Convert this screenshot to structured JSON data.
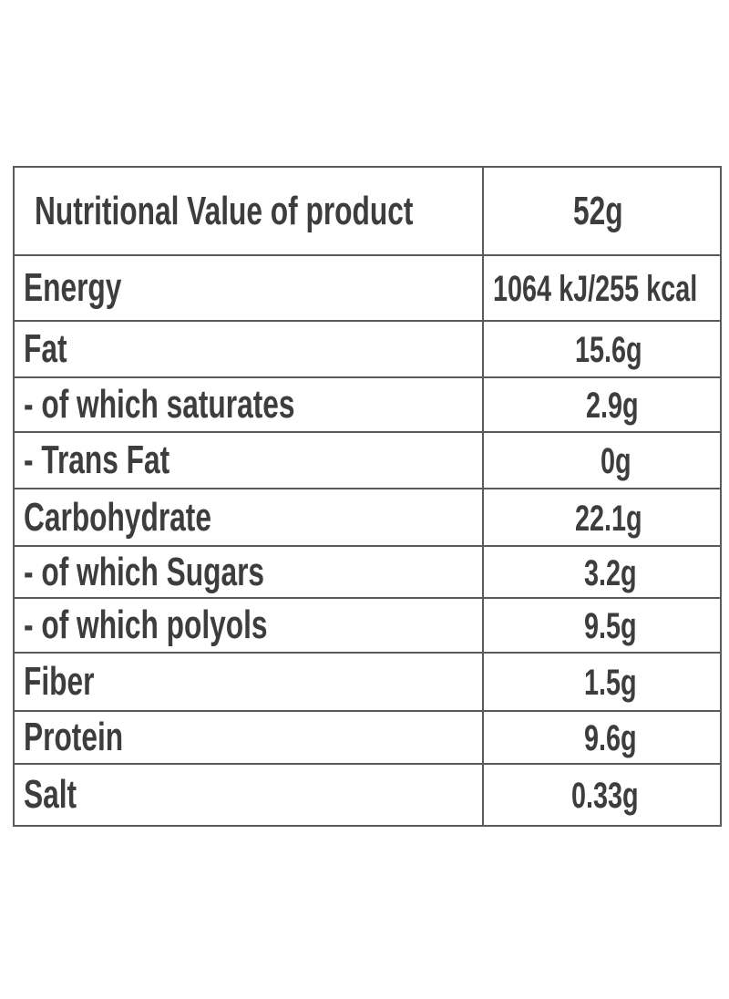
{
  "table": {
    "header": {
      "label": "Nutritional Value of product",
      "value": "52g"
    },
    "rows": [
      {
        "label": "Energy",
        "value": "1064 kJ/255 kcal"
      },
      {
        "label": "Fat",
        "value": "15.6g"
      },
      {
        "label": "- of which saturates",
        "value": "2.9g"
      },
      {
        "label": "- Trans Fat",
        "value": "0g"
      },
      {
        "label": "Carbohydrate",
        "value": "22.1g"
      },
      {
        "label": "- of which Sugars",
        "value": "3.2g"
      },
      {
        "label": "- of which polyols",
        "value": "9.5g"
      },
      {
        "label": "Fiber",
        "value": "1.5g"
      },
      {
        "label": "Protein",
        "value": "9.6g"
      },
      {
        "label": "Salt",
        "value": "0.33g"
      }
    ]
  }
}
